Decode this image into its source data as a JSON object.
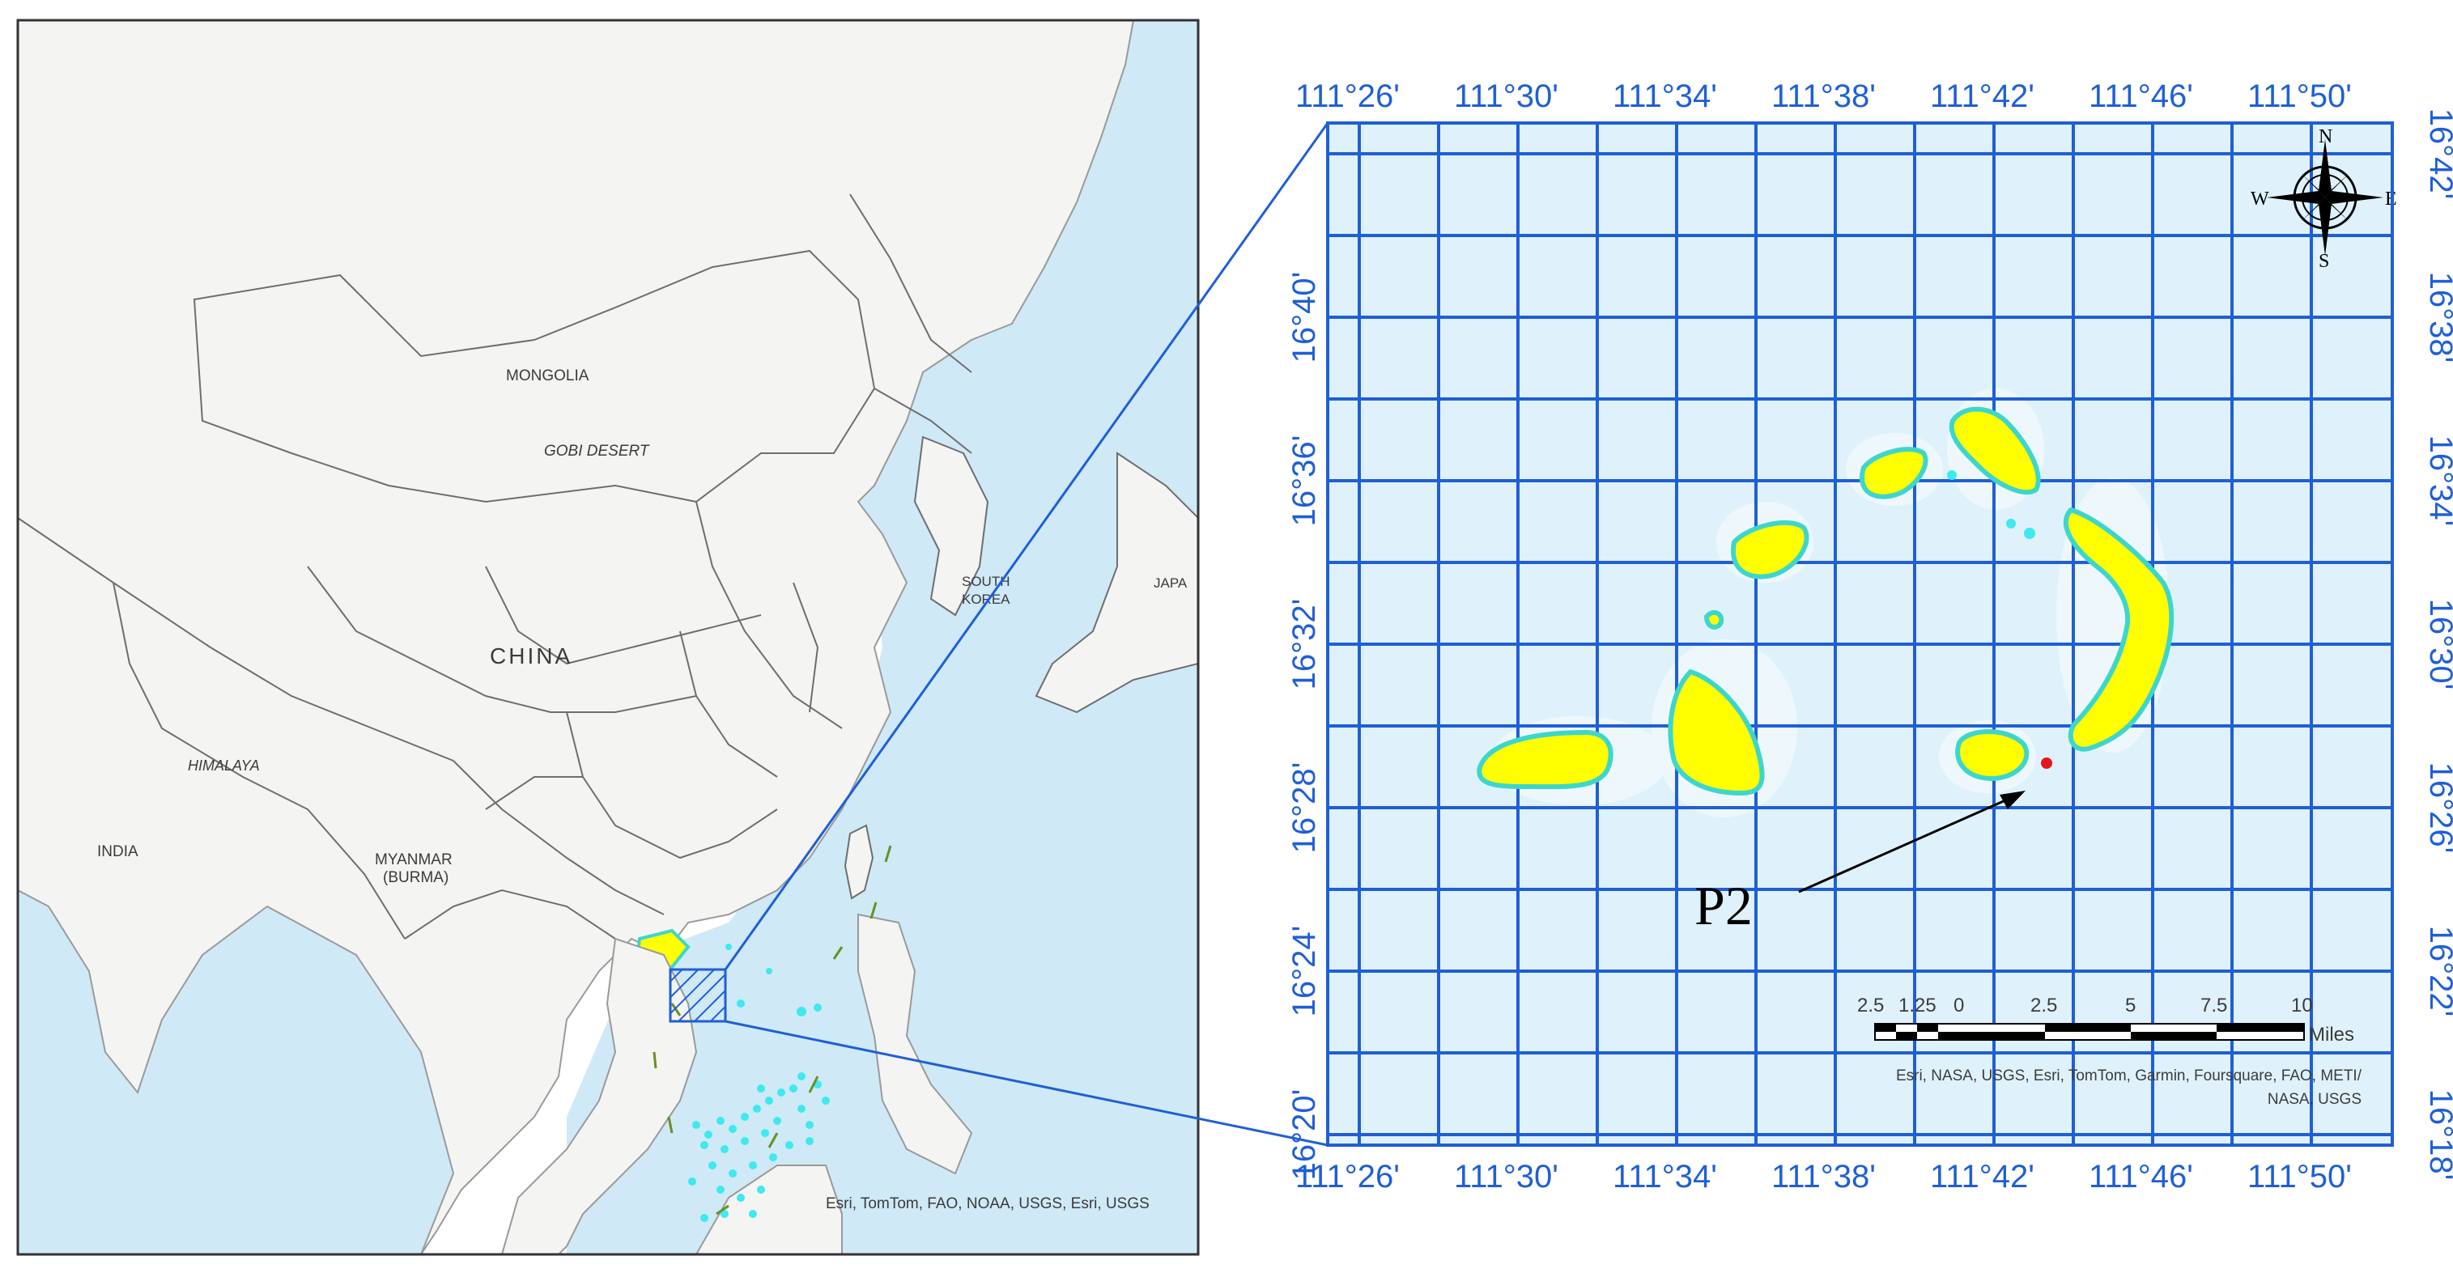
{
  "overview_map": {
    "labels": {
      "mongolia": "MONGOLIA",
      "gobi": "GOBI DESERT",
      "china": "CHINA",
      "himalaya": "HIMALAYA",
      "india": "INDIA",
      "myanmar_1": "MYANMAR",
      "myanmar_2": "(BURMA)",
      "south_korea_1": "SOUTH",
      "south_korea_2": "KOREA",
      "japan": "JAPA"
    },
    "attribution": "Esri, TomTom, FAO, NOAA, USGS, Esri, USGS"
  },
  "detail_map": {
    "top_ticks": [
      "111°26'",
      "111°30'",
      "111°34'",
      "111°38'",
      "111°42'",
      "111°46'",
      "111°50'"
    ],
    "bottom_ticks": [
      "111°26'",
      "111°30'",
      "111°34'",
      "111°38'",
      "111°42'",
      "111°46'",
      "111°50'"
    ],
    "left_ticks": [
      "16°40'",
      "16°36'",
      "16°32'",
      "16°28'",
      "16°24'",
      "16°20'"
    ],
    "right_ticks": [
      "16°42'",
      "16°38'",
      "16°34'",
      "16°30'",
      "16°26'",
      "16°22'",
      "16°18'"
    ],
    "compass": {
      "n": "N",
      "s": "S",
      "e": "E",
      "w": "W"
    },
    "point_label": "P2",
    "scale_bar": {
      "ticks": [
        "2.5",
        "1.25",
        "0",
        "2.5",
        "5",
        "7.5",
        "10"
      ],
      "unit": "Miles"
    },
    "attribution_1": "Esri, NASA, USGS, Esri, TomTom, Garmin, Foursquare, FAO, METI/",
    "attribution_2": "NASA, USGS",
    "colors": {
      "water": "#dff2fb",
      "grid": "#1f5fd6",
      "island": "#ffff00",
      "reef_outline": "#3ed6cc",
      "point": "#e8141b"
    }
  }
}
